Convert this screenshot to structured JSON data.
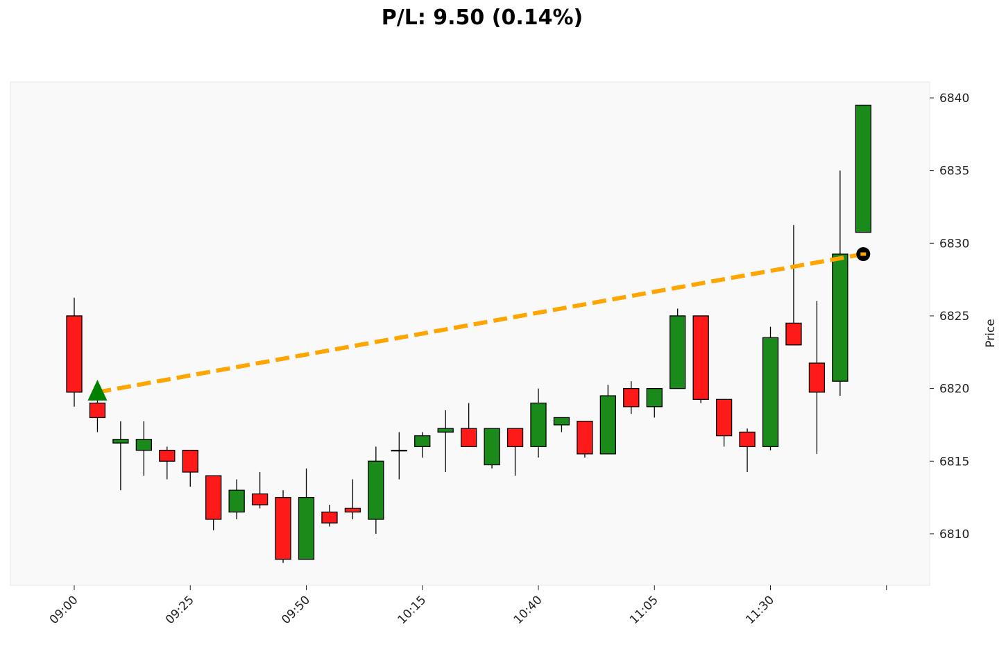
{
  "chart_data": {
    "type": "candlestick",
    "title": "P/L: 9.50 (0.14%)",
    "xlabel": "",
    "ylabel": "Price",
    "ylim": [
      6806.5,
      6841.2
    ],
    "yticks": [
      6810,
      6815,
      6820,
      6825,
      6830,
      6835,
      6840
    ],
    "xtick_labels": [
      "09:00",
      "09:25",
      "09:50",
      "10:15",
      "10:40",
      "11:05",
      "11:30",
      ""
    ],
    "interval_minutes": 5,
    "start_time": "09:00",
    "colors": {
      "up": "#1a8a1a",
      "down": "#ff1a1a",
      "background": "#f9f9f9",
      "trade_line": "#ffa500",
      "entry": "#008000",
      "exit": "#000000"
    },
    "candles": [
      {
        "t": "09:00",
        "o": 6825,
        "h": 6826.25,
        "l": 6818.75,
        "c": 6819.75
      },
      {
        "t": "09:05",
        "o": 6819,
        "h": 6820.5,
        "l": 6817,
        "c": 6818
      },
      {
        "t": "09:10",
        "o": 6816.25,
        "h": 6817.75,
        "l": 6813,
        "c": 6816.5
      },
      {
        "t": "09:15",
        "o": 6815.75,
        "h": 6817.75,
        "l": 6814,
        "c": 6816.5
      },
      {
        "t": "09:20",
        "o": 6815.75,
        "h": 6816,
        "l": 6813.75,
        "c": 6815
      },
      {
        "t": "09:25",
        "o": 6815.75,
        "h": 6815.75,
        "l": 6813.25,
        "c": 6814.25
      },
      {
        "t": "09:30",
        "o": 6814,
        "h": 6814,
        "l": 6810.25,
        "c": 6811
      },
      {
        "t": "09:35",
        "o": 6811.5,
        "h": 6813.75,
        "l": 6811,
        "c": 6813
      },
      {
        "t": "09:40",
        "o": 6812.75,
        "h": 6814.25,
        "l": 6811.75,
        "c": 6812
      },
      {
        "t": "09:45",
        "o": 6812.5,
        "h": 6813,
        "l": 6808,
        "c": 6808.25
      },
      {
        "t": "09:50",
        "o": 6808.25,
        "h": 6814.5,
        "l": 6808.25,
        "c": 6812.5
      },
      {
        "t": "09:55",
        "o": 6811.5,
        "h": 6812,
        "l": 6810.5,
        "c": 6810.75
      },
      {
        "t": "10:00",
        "o": 6811.75,
        "h": 6813.75,
        "l": 6811,
        "c": 6811.5
      },
      {
        "t": "10:05",
        "o": 6811,
        "h": 6816,
        "l": 6810,
        "c": 6815
      },
      {
        "t": "10:10",
        "o": 6815.75,
        "h": 6817,
        "l": 6813.75,
        "c": 6815.75
      },
      {
        "t": "10:15",
        "o": 6816,
        "h": 6817,
        "l": 6815.25,
        "c": 6816.75
      },
      {
        "t": "10:20",
        "o": 6817,
        "h": 6818.5,
        "l": 6814.25,
        "c": 6817.25
      },
      {
        "t": "10:25",
        "o": 6817.25,
        "h": 6819,
        "l": 6816,
        "c": 6816
      },
      {
        "t": "10:30",
        "o": 6814.75,
        "h": 6817.25,
        "l": 6814.5,
        "c": 6817.25
      },
      {
        "t": "10:35",
        "o": 6817.25,
        "h": 6817.25,
        "l": 6814,
        "c": 6816
      },
      {
        "t": "10:40",
        "o": 6816,
        "h": 6820,
        "l": 6815.25,
        "c": 6819
      },
      {
        "t": "10:45",
        "o": 6817.5,
        "h": 6818,
        "l": 6817,
        "c": 6818
      },
      {
        "t": "10:50",
        "o": 6817.75,
        "h": 6817.75,
        "l": 6815.25,
        "c": 6815.5
      },
      {
        "t": "10:55",
        "o": 6815.5,
        "h": 6820.25,
        "l": 6815.5,
        "c": 6819.5
      },
      {
        "t": "11:00",
        "o": 6820,
        "h": 6820.5,
        "l": 6818.25,
        "c": 6818.75
      },
      {
        "t": "11:05",
        "o": 6818.75,
        "h": 6820,
        "l": 6818,
        "c": 6820
      },
      {
        "t": "11:10",
        "o": 6820,
        "h": 6825.5,
        "l": 6820,
        "c": 6825
      },
      {
        "t": "11:15",
        "o": 6825,
        "h": 6825,
        "l": 6819,
        "c": 6819.25
      },
      {
        "t": "11:20",
        "o": 6819.25,
        "h": 6819.25,
        "l": 6816,
        "c": 6816.75
      },
      {
        "t": "11:25",
        "o": 6817,
        "h": 6817.25,
        "l": 6814.25,
        "c": 6816
      },
      {
        "t": "11:30",
        "o": 6816,
        "h": 6824.25,
        "l": 6815.75,
        "c": 6823.5
      },
      {
        "t": "11:35",
        "o": 6824.5,
        "h": 6831.25,
        "l": 6823,
        "c": 6823
      },
      {
        "t": "11:40",
        "o": 6821.75,
        "h": 6826,
        "l": 6815.5,
        "c": 6819.75
      },
      {
        "t": "11:45",
        "o": 6820.5,
        "h": 6835,
        "l": 6819.5,
        "c": 6829.25
      },
      {
        "t": "11:50",
        "o": 6830.75,
        "h": 6839.5,
        "l": 6830.75,
        "c": 6839.5
      }
    ],
    "trade": {
      "entry": {
        "index": 1,
        "price": 6819.75
      },
      "exit": {
        "index": 34,
        "price": 6829.25
      },
      "pl": 9.5,
      "pl_pct": 0.14
    }
  }
}
